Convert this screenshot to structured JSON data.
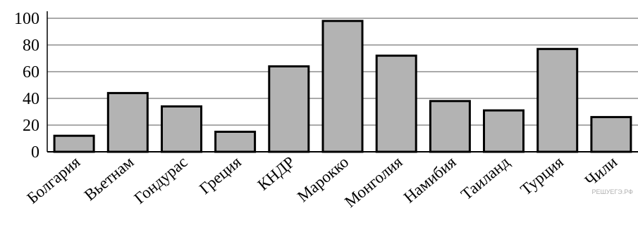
{
  "chart_data": {
    "type": "bar",
    "categories": [
      "Болгария",
      "Вьетнам",
      "Гондурас",
      "Греция",
      "КНДР",
      "Марокко",
      "Монголия",
      "Намибия",
      "Таиланд",
      "Турция",
      "Чили"
    ],
    "values": [
      12,
      44,
      34,
      15,
      64,
      98,
      72,
      38,
      31,
      77,
      26
    ],
    "ylim": [
      0,
      100
    ],
    "yticks": [
      0,
      20,
      40,
      60,
      80,
      100
    ],
    "grid": true,
    "bar_color": "#b3b3b3",
    "title": "",
    "xlabel": "",
    "ylabel": ""
  },
  "watermark": "РЕШУЕГЭ.РФ"
}
